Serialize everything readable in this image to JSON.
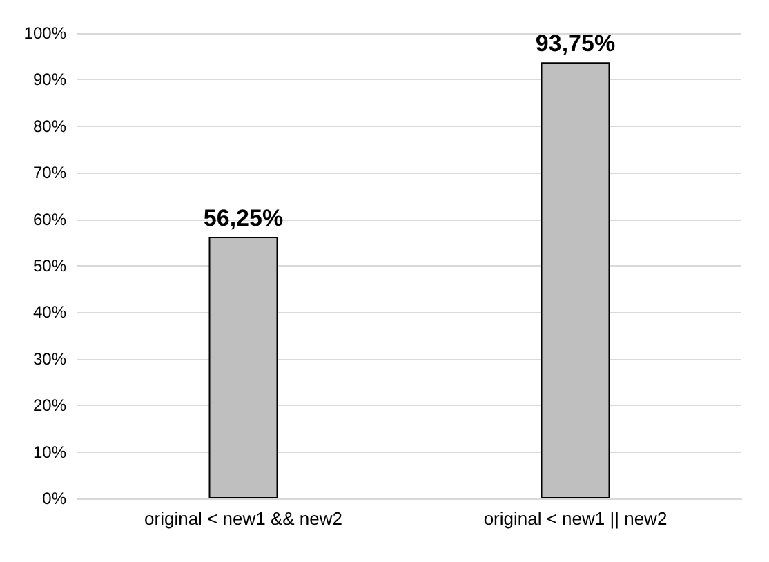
{
  "chart_data": {
    "type": "bar",
    "categories": [
      "original < new1 && new2",
      "original < new1 || new2"
    ],
    "values": [
      56.25,
      93.75
    ],
    "value_labels": [
      "56,25%",
      "93,75%"
    ],
    "color": "#bfbfbf",
    "ylim": [
      0,
      100
    ],
    "yticks": [
      {
        "value": 0,
        "label": "0%"
      },
      {
        "value": 10,
        "label": "10%"
      },
      {
        "value": 20,
        "label": "20%"
      },
      {
        "value": 30,
        "label": "30%"
      },
      {
        "value": 40,
        "label": "40%"
      },
      {
        "value": 50,
        "label": "50%"
      },
      {
        "value": 60,
        "label": "60%"
      },
      {
        "value": 70,
        "label": "70%"
      },
      {
        "value": 80,
        "label": "80%"
      },
      {
        "value": 90,
        "label": "90%"
      },
      {
        "value": 100,
        "label": "100%"
      }
    ],
    "grid": "y"
  }
}
